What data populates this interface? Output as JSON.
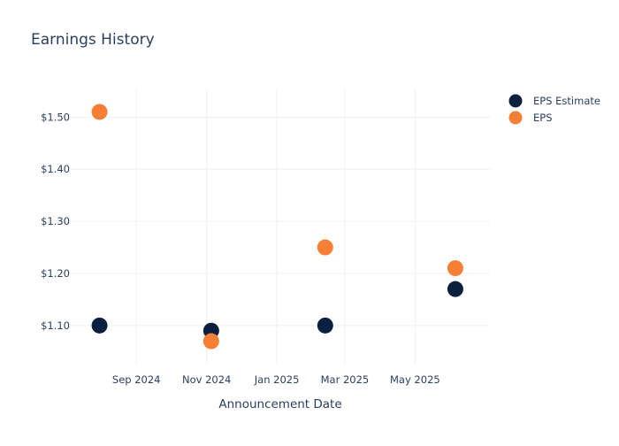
{
  "chart_data": {
    "type": "scatter",
    "title": "Earnings History",
    "xlabel": "Announcement Date",
    "ylabel": "",
    "x_ticks": [
      {
        "date": "2024-09-01",
        "label": "Sep 2024"
      },
      {
        "date": "2024-11-01",
        "label": "Nov 2024"
      },
      {
        "date": "2025-01-01",
        "label": "Jan 2025"
      },
      {
        "date": "2025-03-01",
        "label": "Mar 2025"
      },
      {
        "date": "2025-05-01",
        "label": "May 2025"
      }
    ],
    "y_ticks": [
      {
        "value": 1.1,
        "label": "$1.10"
      },
      {
        "value": 1.2,
        "label": "$1.20"
      },
      {
        "value": 1.3,
        "label": "$1.30"
      },
      {
        "value": 1.4,
        "label": "$1.40"
      },
      {
        "value": 1.5,
        "label": "$1.50"
      }
    ],
    "xlim": [
      "2024-07-06",
      "2025-07-05"
    ],
    "ylim": [
      1.025,
      1.555
    ],
    "grid": true,
    "legend_position": "top-right",
    "series": [
      {
        "name": "EPS Estimate",
        "color": "#0b1f3f",
        "points": [
          {
            "x": "2024-07-31",
            "y": 1.1
          },
          {
            "x": "2024-11-05",
            "y": 1.09
          },
          {
            "x": "2025-02-12",
            "y": 1.1
          },
          {
            "x": "2025-06-05",
            "y": 1.17
          }
        ]
      },
      {
        "name": "EPS",
        "color": "#f47f35",
        "points": [
          {
            "x": "2024-07-31",
            "y": 1.51
          },
          {
            "x": "2024-11-05",
            "y": 1.07
          },
          {
            "x": "2025-02-12",
            "y": 1.25
          },
          {
            "x": "2025-06-05",
            "y": 1.21
          }
        ]
      }
    ]
  }
}
